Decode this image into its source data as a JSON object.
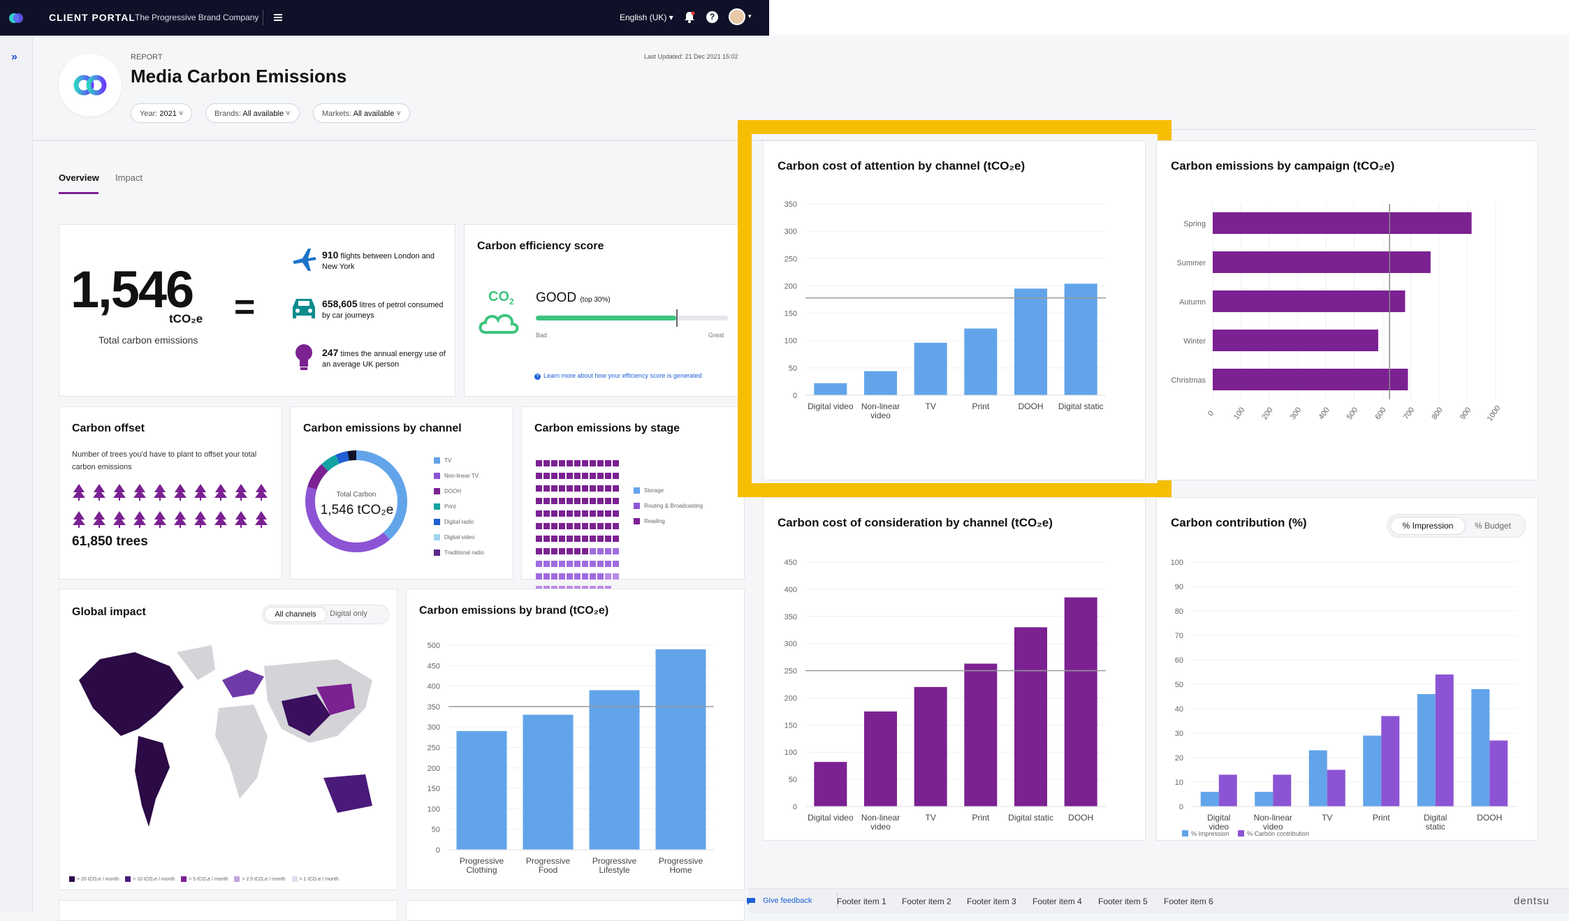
{
  "topbar": {
    "portal_title": "CLIENT PORTAL",
    "company": "The Progressive Brand Company",
    "language": "English (UK)"
  },
  "header": {
    "eyebrow": "REPORT",
    "title": "Media Carbon Emissions",
    "last_updated": "Last Updated: 21 Dec 2021 15:02",
    "filters": [
      {
        "label": "Year:",
        "value": "2021"
      },
      {
        "label": "Brands:",
        "value": "All available"
      },
      {
        "label": "Markets:",
        "value": "All available"
      }
    ]
  },
  "tabs": [
    {
      "label": "Overview",
      "active": true
    },
    {
      "label": "Impact",
      "active": false
    }
  ],
  "total": {
    "value": "1,546",
    "unit": "tCO₂e",
    "caption": "Total carbon emissions",
    "equals": "=",
    "equivalents": [
      {
        "icon": "airplane-icon",
        "strong": "910",
        "text": " flights between London and New York"
      },
      {
        "icon": "car-icon",
        "strong": "658,605",
        "text": " litres of petrol consumed by car journeys"
      },
      {
        "icon": "lightbulb-icon",
        "strong": "247",
        "text": " times the annual energy use of an average UK person"
      }
    ]
  },
  "efficiency": {
    "title": "Carbon efficiency score",
    "co2_label": "CO",
    "co2_sub": "2",
    "rating": "GOOD",
    "rating_note": "(top 30%)",
    "score_fraction": 0.73,
    "low": "Bad",
    "high": "Great",
    "link": "Learn more about how your efficiency score is generated"
  },
  "offset": {
    "title": "Carbon offset",
    "desc": "Number of trees you'd have to plant to offset your total carbon emissions",
    "trees": "61,850 trees"
  },
  "channel_donut": {
    "title": "Carbon emissions by channel",
    "center_label": "Total Carbon",
    "center_value": "1,546 tCO₂e",
    "legend": [
      "TV",
      "Non-linear TV",
      "DOOH",
      "Print",
      "Digital radio",
      "Digital video",
      "Traditional radio"
    ]
  },
  "stage": {
    "title": "Carbon emissions by stage",
    "legend": [
      "Storage",
      "Routing & Broadcasting",
      "Reading"
    ]
  },
  "global": {
    "title": "Global impact",
    "toggle": [
      "All channels",
      "Digital only"
    ],
    "legend": [
      "> 20 tCO₂e / month",
      "> 10 tCO₂e / month",
      "> 5 tCO₂e / month",
      "> 2.5 tCO₂e / month",
      "> 1 tCO₂e / month"
    ]
  },
  "contribution_toggle": [
    "% Impression",
    "% Budget"
  ],
  "footer": {
    "feedback": "Give feedback",
    "items": [
      "Footer item 1",
      "Footer item 2",
      "Footer item 3",
      "Footer item 4",
      "Footer item 5",
      "Footer item 6"
    ],
    "brand": "dentsu"
  },
  "colors": {
    "blue": "#62a4ea",
    "purple": "#7b2192",
    "light_purple": "#8c54d4",
    "highlight": "#f6be00",
    "nav": "#0f1128",
    "green": "#3dc47e"
  },
  "chart_data": [
    {
      "id": "attention",
      "type": "bar",
      "title": "Carbon cost of attention by channel (tCO₂e)",
      "categories": [
        "Digital video",
        "Non-linear video",
        "TV",
        "Print",
        "DOOH",
        "Digital static"
      ],
      "values": [
        22,
        44,
        96,
        122,
        195,
        204
      ],
      "ylim": [
        0,
        350
      ],
      "yticks": [
        0,
        50,
        100,
        150,
        200,
        250,
        300,
        350
      ],
      "reference_line": 178
    },
    {
      "id": "campaign",
      "type": "bar",
      "orientation": "horizontal",
      "title": "Carbon emissions by campaign (tCO₂e)",
      "categories": [
        "Spring",
        "Summer",
        "Autumn",
        "Winter",
        "Christmas"
      ],
      "values": [
        915,
        770,
        680,
        585,
        690
      ],
      "xlim": [
        0,
        1000
      ],
      "xticks": [
        0,
        100,
        200,
        300,
        400,
        500,
        600,
        700,
        800,
        900,
        1000
      ],
      "reference_line": 625
    },
    {
      "id": "consideration",
      "type": "bar",
      "title": "Carbon cost of consideration by channel (tCO₂e)",
      "categories": [
        "Digital video",
        "Non-linear video",
        "TV",
        "Print",
        "Digital static",
        "DOOH"
      ],
      "values": [
        82,
        175,
        220,
        263,
        330,
        385
      ],
      "ylim": [
        0,
        450
      ],
      "yticks": [
        0,
        50,
        100,
        150,
        200,
        250,
        300,
        350,
        400,
        450
      ],
      "reference_line": 250
    },
    {
      "id": "contribution",
      "type": "bar",
      "title": "Carbon contribution (%)",
      "categories": [
        "Digital video",
        "Non-linear video",
        "TV",
        "Print",
        "Digital static",
        "DOOH"
      ],
      "series": [
        {
          "name": "% Impression",
          "values": [
            6,
            6,
            23,
            29,
            46,
            48
          ]
        },
        {
          "name": "% Carbon contribution",
          "values": [
            13,
            13,
            15,
            37,
            54,
            27
          ]
        }
      ],
      "ylim": [
        0,
        100
      ],
      "yticks": [
        0,
        10,
        20,
        30,
        40,
        50,
        60,
        70,
        80,
        90,
        100
      ]
    },
    {
      "id": "brand",
      "type": "bar",
      "title": "Carbon emissions by brand (tCO₂e)",
      "categories": [
        "Progressive Clothing",
        "Progressive Food",
        "Progressive Lifestyle",
        "Progressive Home"
      ],
      "values": [
        290,
        330,
        390,
        490
      ],
      "ylim": [
        0,
        500
      ],
      "yticks": [
        0,
        50,
        100,
        150,
        200,
        250,
        300,
        350,
        400,
        450,
        500
      ],
      "reference_line": 350
    }
  ]
}
